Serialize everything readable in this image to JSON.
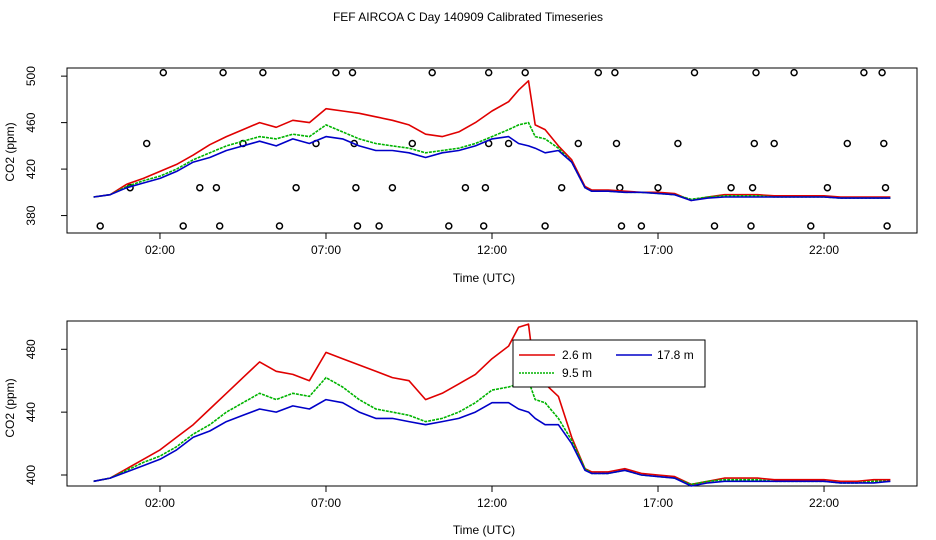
{
  "title": "FEF AIRCOA C  Day 140909  Calibrated Timeseries",
  "colors": {
    "s26": "#e00000",
    "s95": "#00b400",
    "s178": "#0000c8",
    "flags": "#000000"
  },
  "chart_data": [
    {
      "type": "line",
      "xlabel": "Time (UTC)",
      "ylabel": "CO2 (ppm)",
      "x_unit": "hours UTC",
      "xlim": [
        -0.8,
        24.8
      ],
      "ylim": [
        365,
        507
      ],
      "xticks": [
        2,
        7,
        12,
        17,
        22
      ],
      "xtick_labels": [
        "02:00",
        "07:00",
        "12:00",
        "17:00",
        "22:00"
      ],
      "yticks": [
        380,
        420,
        460,
        500
      ],
      "ytick_labels": [
        "380",
        "420",
        "460",
        "500"
      ],
      "series": [
        {
          "name": "2.6 m",
          "color": "#e00000",
          "x": [
            0,
            0.5,
            1,
            1.5,
            2,
            2.5,
            3,
            3.5,
            4,
            4.5,
            5,
            5.5,
            6,
            6.5,
            7,
            7.5,
            8,
            8.5,
            9,
            9.5,
            10,
            10.5,
            11,
            11.5,
            12,
            12.5,
            12.8,
            13.1,
            13.3,
            13.6,
            14,
            14.4,
            14.8,
            15,
            15.5,
            16,
            16.5,
            17,
            17.5,
            18,
            18.5,
            19,
            19.5,
            20,
            20.5,
            21,
            21.5,
            22,
            22.5,
            23,
            23.5,
            24
          ],
          "y": [
            396,
            398,
            407,
            412,
            418,
            424,
            432,
            441,
            448,
            454,
            460,
            456,
            462,
            460,
            472,
            470,
            468,
            465,
            462,
            458,
            450,
            448,
            452,
            460,
            470,
            478,
            488,
            496,
            458,
            454,
            440,
            428,
            405,
            402,
            402,
            401,
            400,
            400,
            399,
            393,
            396,
            398,
            398,
            398,
            397,
            397,
            397,
            397,
            396,
            396,
            396,
            396
          ]
        },
        {
          "name": "9.5 m",
          "color": "#00b400",
          "x": [
            0,
            0.5,
            1,
            1.5,
            2,
            2.5,
            3,
            3.5,
            4,
            4.5,
            5,
            5.5,
            6,
            6.5,
            7,
            7.5,
            8,
            8.5,
            9,
            9.5,
            10,
            10.5,
            11,
            11.5,
            12,
            12.5,
            12.8,
            13.1,
            13.3,
            13.6,
            14,
            14.4,
            14.8,
            15,
            15.5,
            16,
            16.5,
            17,
            17.5,
            18,
            18.5,
            19,
            19.5,
            20,
            20.5,
            21,
            21.5,
            22,
            22.5,
            23,
            23.5,
            24
          ],
          "y": [
            396,
            398,
            405,
            410,
            414,
            420,
            428,
            434,
            440,
            444,
            448,
            446,
            450,
            448,
            458,
            452,
            446,
            442,
            440,
            438,
            434,
            436,
            438,
            442,
            448,
            454,
            458,
            460,
            448,
            446,
            438,
            426,
            404,
            401,
            401,
            400,
            400,
            399,
            398,
            394,
            396,
            397,
            397,
            397,
            396,
            396,
            396,
            396,
            395,
            395,
            395,
            395
          ]
        },
        {
          "name": "17.8 m",
          "color": "#0000c8",
          "x": [
            0,
            0.5,
            1,
            1.5,
            2,
            2.5,
            3,
            3.5,
            4,
            4.5,
            5,
            5.5,
            6,
            6.5,
            7,
            7.5,
            8,
            8.5,
            9,
            9.5,
            10,
            10.5,
            11,
            11.5,
            12,
            12.5,
            12.8,
            13.1,
            13.3,
            13.6,
            14,
            14.4,
            14.8,
            15,
            15.5,
            16,
            16.5,
            17,
            17.5,
            18,
            18.5,
            19,
            19.5,
            20,
            20.5,
            21,
            21.5,
            22,
            22.5,
            23,
            23.5,
            24
          ],
          "y": [
            396,
            398,
            404,
            408,
            412,
            418,
            426,
            430,
            436,
            440,
            444,
            440,
            446,
            442,
            448,
            446,
            440,
            436,
            436,
            434,
            430,
            434,
            436,
            440,
            446,
            448,
            442,
            440,
            438,
            434,
            436,
            426,
            404,
            401,
            401,
            400,
            400,
            399,
            398,
            393,
            395,
            396,
            396,
            396,
            396,
            396,
            396,
            396,
            395,
            395,
            395,
            395
          ]
        }
      ],
      "flags": [
        {
          "x": 0.2,
          "y": 371
        },
        {
          "x": 1.1,
          "y": 404
        },
        {
          "x": 1.6,
          "y": 442
        },
        {
          "x": 2.1,
          "y": 503
        },
        {
          "x": 2.7,
          "y": 371
        },
        {
          "x": 3.2,
          "y": 404
        },
        {
          "x": 3.7,
          "y": 404
        },
        {
          "x": 3.8,
          "y": 371
        },
        {
          "x": 3.9,
          "y": 503
        },
        {
          "x": 4.5,
          "y": 442
        },
        {
          "x": 5.1,
          "y": 503
        },
        {
          "x": 5.6,
          "y": 371
        },
        {
          "x": 6.1,
          "y": 404
        },
        {
          "x": 6.7,
          "y": 442
        },
        {
          "x": 7.3,
          "y": 503
        },
        {
          "x": 7.8,
          "y": 503
        },
        {
          "x": 7.9,
          "y": 404
        },
        {
          "x": 7.95,
          "y": 371
        },
        {
          "x": 7.85,
          "y": 442
        },
        {
          "x": 8.6,
          "y": 371
        },
        {
          "x": 9.0,
          "y": 404
        },
        {
          "x": 9.6,
          "y": 442
        },
        {
          "x": 10.2,
          "y": 503
        },
        {
          "x": 10.7,
          "y": 371
        },
        {
          "x": 11.2,
          "y": 404
        },
        {
          "x": 11.8,
          "y": 404
        },
        {
          "x": 11.75,
          "y": 371
        },
        {
          "x": 11.9,
          "y": 503
        },
        {
          "x": 11.9,
          "y": 442
        },
        {
          "x": 12.5,
          "y": 442
        },
        {
          "x": 13.0,
          "y": 503
        },
        {
          "x": 13.6,
          "y": 371
        },
        {
          "x": 14.1,
          "y": 404
        },
        {
          "x": 14.6,
          "y": 442
        },
        {
          "x": 15.2,
          "y": 503
        },
        {
          "x": 15.7,
          "y": 503
        },
        {
          "x": 15.75,
          "y": 442
        },
        {
          "x": 15.85,
          "y": 404
        },
        {
          "x": 15.9,
          "y": 371
        },
        {
          "x": 16.5,
          "y": 371
        },
        {
          "x": 17.0,
          "y": 404
        },
        {
          "x": 17.6,
          "y": 442
        },
        {
          "x": 18.1,
          "y": 503
        },
        {
          "x": 18.7,
          "y": 371
        },
        {
          "x": 19.2,
          "y": 404
        },
        {
          "x": 19.8,
          "y": 371
        },
        {
          "x": 19.85,
          "y": 404
        },
        {
          "x": 19.9,
          "y": 442
        },
        {
          "x": 19.95,
          "y": 503
        },
        {
          "x": 20.5,
          "y": 442
        },
        {
          "x": 21.1,
          "y": 503
        },
        {
          "x": 21.6,
          "y": 371
        },
        {
          "x": 22.1,
          "y": 404
        },
        {
          "x": 22.7,
          "y": 442
        },
        {
          "x": 23.2,
          "y": 503
        },
        {
          "x": 23.75,
          "y": 503
        },
        {
          "x": 23.8,
          "y": 442
        },
        {
          "x": 23.85,
          "y": 404
        },
        {
          "x": 23.9,
          "y": 371
        }
      ]
    },
    {
      "type": "line",
      "xlabel": "Time (UTC)",
      "ylabel": "CO2 (ppm)",
      "x_unit": "hours UTC",
      "xlim": [
        -0.8,
        24.8
      ],
      "ylim": [
        393,
        498
      ],
      "xticks": [
        2,
        7,
        12,
        17,
        22
      ],
      "xtick_labels": [
        "02:00",
        "07:00",
        "12:00",
        "17:00",
        "22:00"
      ],
      "yticks": [
        400,
        440,
        480
      ],
      "ytick_labels": [
        "400",
        "440",
        "480"
      ],
      "legend": {
        "position": "top-right-of-center",
        "entries": [
          "2.6 m",
          "17.8 m",
          "9.5 m"
        ]
      },
      "series": [
        {
          "name": "2.6 m",
          "color": "#e00000",
          "x": [
            0,
            0.5,
            1,
            1.5,
            2,
            2.5,
            3,
            3.5,
            4,
            4.5,
            5,
            5.5,
            6,
            6.5,
            7,
            7.5,
            8,
            8.5,
            9,
            9.5,
            10,
            10.5,
            11,
            11.5,
            12,
            12.5,
            12.8,
            13.1,
            13.3,
            13.6,
            14,
            14.4,
            14.8,
            15,
            15.5,
            16,
            16.5,
            17,
            17.5,
            18,
            18.5,
            19,
            19.5,
            20,
            20.5,
            21,
            21.5,
            22,
            22.5,
            23,
            23.5,
            24
          ],
          "y": [
            396,
            398,
            404,
            410,
            416,
            424,
            432,
            442,
            452,
            462,
            472,
            466,
            464,
            460,
            478,
            474,
            470,
            466,
            462,
            460,
            448,
            452,
            458,
            464,
            474,
            482,
            494,
            496,
            462,
            458,
            450,
            424,
            404,
            402,
            402,
            404,
            401,
            400,
            399,
            394,
            396,
            398,
            398,
            398,
            397,
            397,
            397,
            397,
            396,
            396,
            397,
            397
          ]
        },
        {
          "name": "9.5 m",
          "color": "#00b400",
          "x": [
            0,
            0.5,
            1,
            1.5,
            2,
            2.5,
            3,
            3.5,
            4,
            4.5,
            5,
            5.5,
            6,
            6.5,
            7,
            7.5,
            8,
            8.5,
            9,
            9.5,
            10,
            10.5,
            11,
            11.5,
            12,
            12.5,
            12.8,
            13.1,
            13.3,
            13.6,
            14,
            14.4,
            14.8,
            15,
            15.5,
            16,
            16.5,
            17,
            17.5,
            18,
            18.5,
            19,
            19.5,
            20,
            20.5,
            21,
            21.5,
            22,
            22.5,
            23,
            23.5,
            24
          ],
          "y": [
            396,
            398,
            403,
            408,
            412,
            418,
            426,
            432,
            440,
            446,
            452,
            448,
            452,
            450,
            462,
            456,
            448,
            442,
            440,
            438,
            434,
            436,
            440,
            446,
            454,
            456,
            458,
            460,
            448,
            446,
            436,
            422,
            404,
            401,
            401,
            403,
            400,
            399,
            398,
            394,
            396,
            397,
            397,
            397,
            396,
            396,
            396,
            396,
            395,
            395,
            396,
            396
          ]
        },
        {
          "name": "17.8 m",
          "color": "#0000c8",
          "x": [
            0,
            0.5,
            1,
            1.5,
            2,
            2.5,
            3,
            3.5,
            4,
            4.5,
            5,
            5.5,
            6,
            6.5,
            7,
            7.5,
            8,
            8.5,
            9,
            9.5,
            10,
            10.5,
            11,
            11.5,
            12,
            12.5,
            12.8,
            13.1,
            13.3,
            13.6,
            14,
            14.4,
            14.8,
            15,
            15.5,
            16,
            16.5,
            17,
            17.5,
            18,
            18.5,
            19,
            19.5,
            20,
            20.5,
            21,
            21.5,
            22,
            22.5,
            23,
            23.5,
            24
          ],
          "y": [
            396,
            398,
            402,
            406,
            410,
            416,
            424,
            428,
            434,
            438,
            442,
            440,
            444,
            442,
            448,
            446,
            440,
            436,
            436,
            434,
            432,
            434,
            436,
            440,
            446,
            446,
            442,
            440,
            436,
            432,
            432,
            420,
            403,
            401,
            401,
            403,
            400,
            399,
            398,
            393,
            395,
            396,
            396,
            396,
            396,
            396,
            396,
            396,
            395,
            395,
            395,
            396
          ]
        }
      ]
    }
  ]
}
